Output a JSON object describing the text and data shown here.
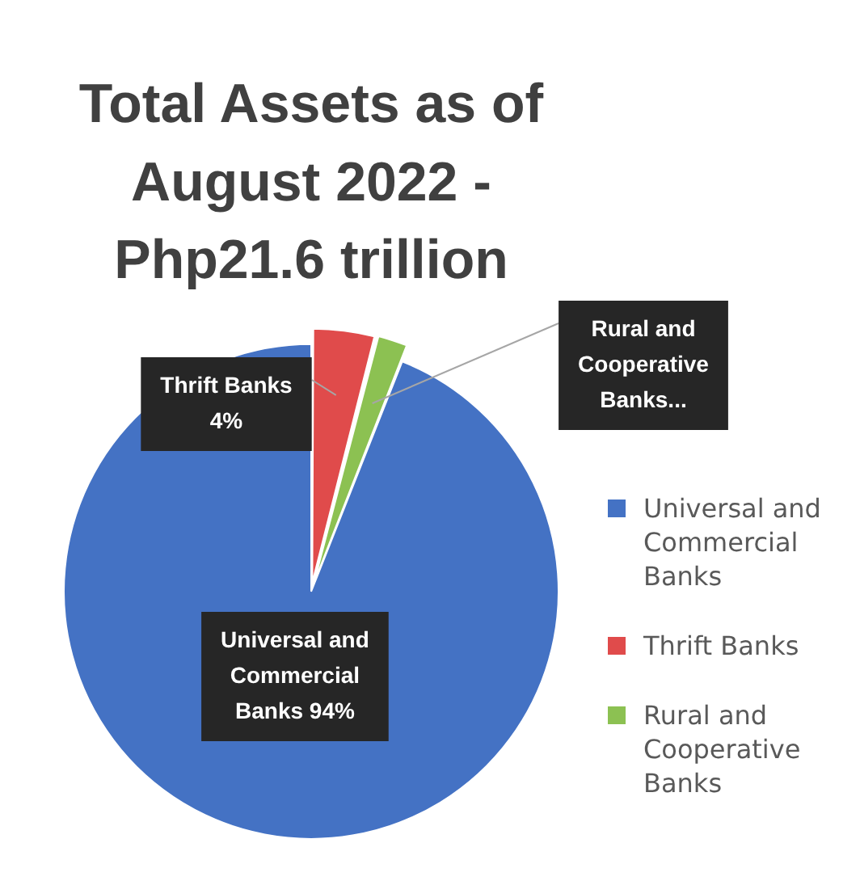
{
  "chart_data": {
    "type": "pie",
    "title": "Total Assets as of August 2022 - Php21.6 trillion",
    "categories": [
      "Universal and Commercial Banks",
      "Thrift Banks",
      "Rural and Cooperative Banks"
    ],
    "values": [
      94,
      4,
      2
    ],
    "colors": [
      "#4472c4",
      "#e04b4b",
      "#8cc152"
    ],
    "value_labels": [
      "Universal and Commercial Banks 94%",
      "Thrift Banks 4%",
      "Rural and Cooperative Banks..."
    ],
    "legend": "right"
  }
}
